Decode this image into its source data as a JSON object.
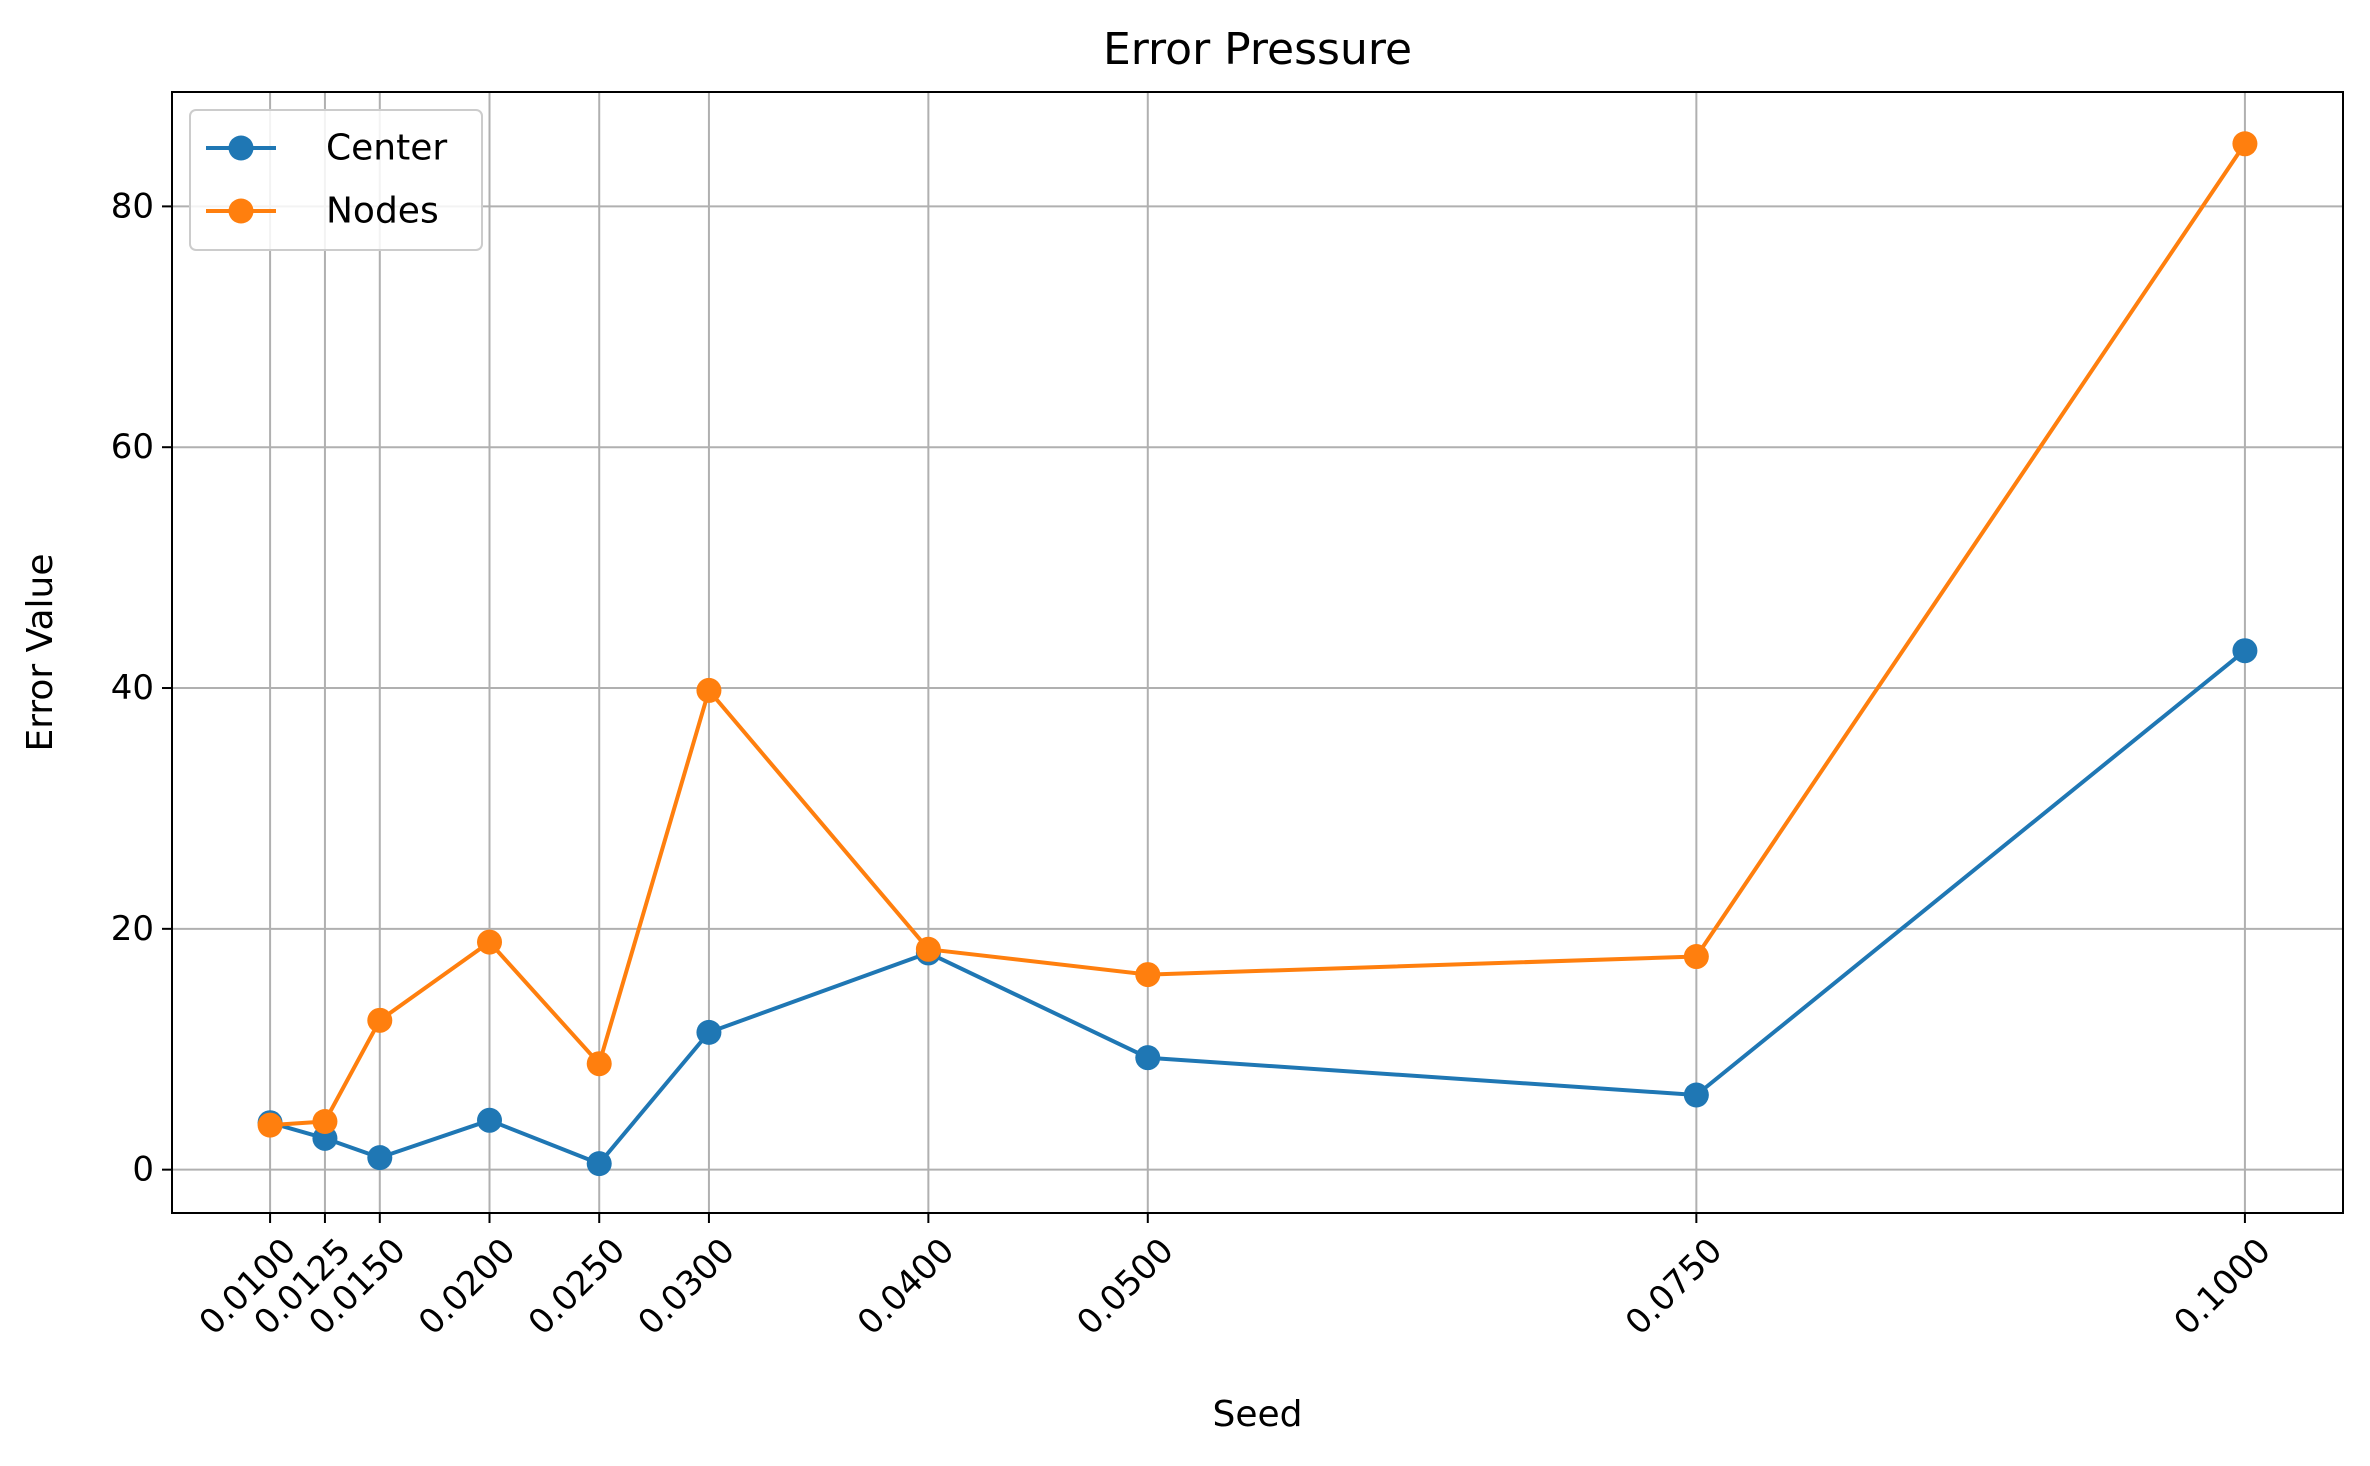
{
  "chart_data": {
    "type": "line",
    "title": "Error Pressure",
    "xlabel": "Seed",
    "ylabel": "Error Value",
    "x": [
      0.01,
      0.0125,
      0.015,
      0.02,
      0.025,
      0.03,
      0.04,
      0.05,
      0.075,
      0.1
    ],
    "x_tick_labels": [
      "0.0100",
      "0.0125",
      "0.0150",
      "0.0200",
      "0.0250",
      "0.0300",
      "0.0400",
      "0.0500",
      "0.0750",
      "0.1000"
    ],
    "xlim": [
      0.00553,
      0.10447
    ],
    "ylim": [
      -3.6,
      89.5
    ],
    "y_ticks": [
      0,
      20,
      40,
      60,
      80
    ],
    "grid": true,
    "legend_position": "top-left",
    "series": [
      {
        "name": "Center",
        "color": "#1f77b4",
        "marker": "circle",
        "values": [
          3.9,
          2.6,
          1.0,
          4.1,
          0.5,
          11.4,
          18.0,
          9.3,
          6.2,
          43.1
        ]
      },
      {
        "name": "Nodes",
        "color": "#ff7f0e",
        "marker": "circle",
        "values": [
          3.7,
          4.0,
          12.4,
          18.9,
          8.8,
          39.8,
          18.3,
          16.2,
          17.7,
          85.2
        ]
      }
    ]
  }
}
